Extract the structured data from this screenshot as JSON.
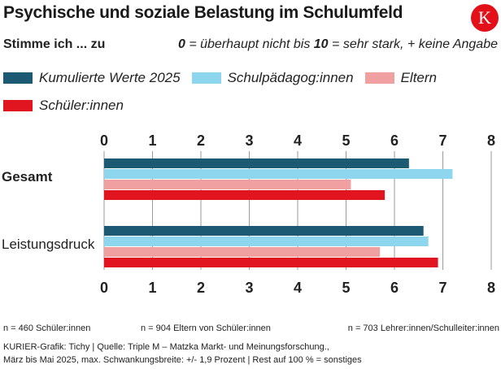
{
  "title": "Psychische und soziale Belastung im Schulumfeld",
  "logo_letter": "K",
  "subtitle": "Stimme ich ... zu",
  "scale": {
    "zero": "0",
    "text1": " = überhaupt nicht bis ",
    "ten": "10",
    "text2": " = sehr stark, + keine Angabe"
  },
  "legend": [
    {
      "label": "Kumulierte Werte 2025",
      "color": "#1b5a72"
    },
    {
      "label": "Schulpädagog:innen",
      "color": "#8dd6ee"
    },
    {
      "label": "Eltern",
      "color": "#f0a0a0"
    },
    {
      "label": "Schüler:innen",
      "color": "#e01520"
    }
  ],
  "chart_data": {
    "type": "bar",
    "orientation": "horizontal",
    "title": "Psychische und soziale Belastung im Schulumfeld",
    "xlim": [
      0,
      8
    ],
    "ticks": [
      "0",
      "1",
      "2",
      "3",
      "4",
      "5",
      "6",
      "7",
      "8"
    ],
    "categories": [
      "Gesamt",
      "Leistungsdruck"
    ],
    "series": [
      {
        "name": "Kumulierte Werte 2025",
        "color": "#1b5a72",
        "values": [
          6.3,
          6.6
        ]
      },
      {
        "name": "Schulpädagog:innen",
        "color": "#8dd6ee",
        "values": [
          7.2,
          6.7
        ]
      },
      {
        "name": "Eltern",
        "color": "#f0a0a0",
        "values": [
          5.1,
          5.7
        ]
      },
      {
        "name": "Schüler:innen",
        "color": "#e01520",
        "values": [
          5.8,
          6.9
        ]
      }
    ]
  },
  "footnotes": {
    "n_students": "n = 460 Schüler:innen",
    "n_parents": "n = 904 Eltern von Schüler:innen",
    "n_teachers": "n = 703 Lehrer:innen/Schulleiter:innen"
  },
  "source_line1": "KURIER-Grafik: Tichy | Quelle: Triple M – Matzka Markt- und Meinungsforschung.,",
  "source_line2": "März bis Mai 2025, max. Schwankungsbreite: +/- 1,9 Prozent | Rest auf 100 % = sonstiges"
}
